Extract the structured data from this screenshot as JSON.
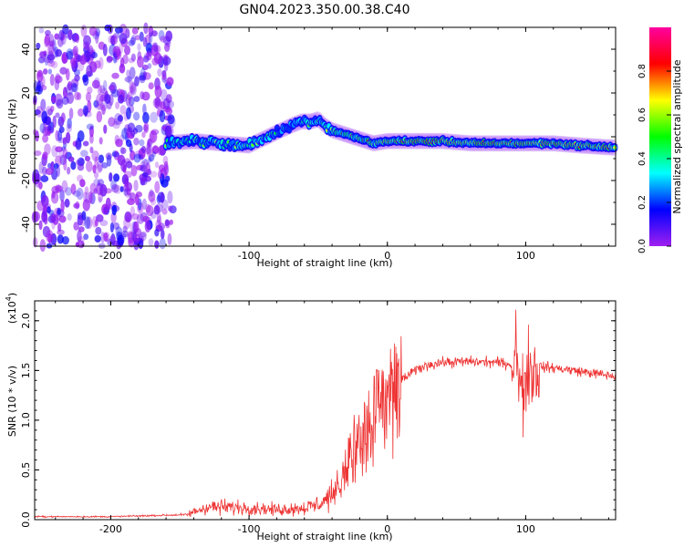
{
  "chart_data": [
    {
      "type": "heatmap",
      "title": "GN04.2023.350.00.38.C40",
      "xlabel": "Height of straight line (km)",
      "ylabel": "Frequency (Hz)",
      "xlim": [
        -255,
        165
      ],
      "ylim": [
        -50,
        50
      ],
      "x_ticks": [
        -200,
        -100,
        0,
        100
      ],
      "y_ticks": [
        -40,
        -20,
        0,
        20,
        40
      ],
      "colorbar": {
        "label": "Normalized spectral amplitude",
        "range": [
          0,
          1
        ],
        "ticks": [
          "0.0",
          "0.2",
          "0.4",
          "0.6",
          "0.8"
        ],
        "colors": [
          "#a020f0",
          "#0000ff",
          "#00ffff",
          "#00ff00",
          "#ffff00",
          "#ff0000",
          "#ff00a0"
        ]
      },
      "noise_region_x": [
        -255,
        -155
      ],
      "ridge": {
        "x": [
          -160,
          -140,
          -120,
          -100,
          -90,
          -80,
          -70,
          -62,
          -55,
          -50,
          -45,
          -40,
          -30,
          -20,
          -10,
          0,
          20,
          40,
          60,
          80,
          100,
          120,
          140,
          165
        ],
        "y": [
          -3,
          -2,
          -3,
          -4,
          -1,
          2,
          5,
          7,
          7,
          8,
          5,
          3,
          1,
          -1,
          -3,
          -2,
          -2,
          -2,
          -3,
          -3,
          -3,
          -3,
          -4,
          -5
        ]
      },
      "grid": false
    },
    {
      "type": "line",
      "xlabel": "Height of straight line (km)",
      "ylabel": "SNR (10 * v/v)",
      "scale_label": "(x10",
      "scale_exp": "4",
      "xlim": [
        -255,
        165
      ],
      "ylim": [
        0,
        22000
      ],
      "x_ticks": [
        -200,
        -100,
        0,
        100
      ],
      "y_ticks": [
        "0.0",
        "0.5",
        "1.0",
        "1.5",
        "2.0"
      ],
      "color": "#ee3333",
      "series": [
        {
          "envelope_x": [
            -255,
            -200,
            -145,
            -130,
            -100,
            -80,
            -60,
            -50,
            -40,
            -30,
            -20,
            -10,
            0,
            10,
            20,
            30,
            40,
            60,
            80,
            90,
            95,
            100,
            105,
            110,
            130,
            150,
            165
          ],
          "envelope_y": [
            300,
            300,
            500,
            1300,
            1200,
            1000,
            1200,
            1500,
            2500,
            6000,
            9000,
            11000,
            12500,
            14000,
            15000,
            15600,
            15800,
            15900,
            15800,
            15600,
            15000,
            14000,
            15000,
            15400,
            15100,
            14700,
            14400
          ]
        }
      ],
      "grid": false
    }
  ]
}
